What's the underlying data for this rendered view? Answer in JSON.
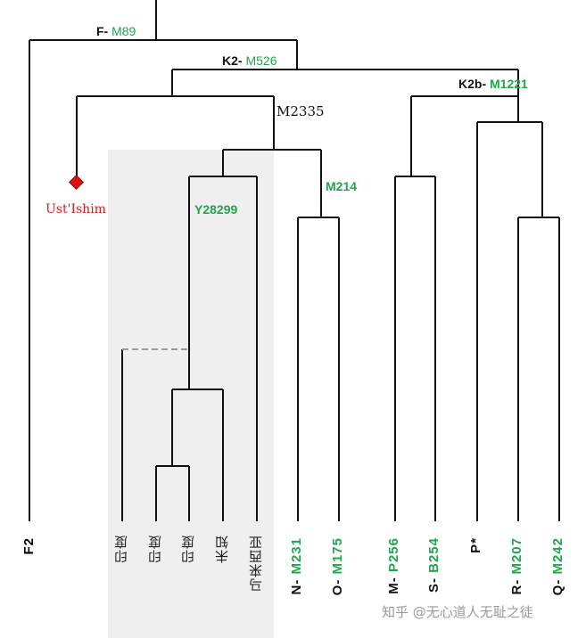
{
  "nodes": {
    "f": {
      "prefix": "F-",
      "marker": "M89"
    },
    "k2": {
      "prefix": "K2-",
      "marker": "M526"
    },
    "k2b": {
      "prefix": "K2b-",
      "marker": "M1221"
    },
    "m2335": {
      "marker": "M2335"
    },
    "m214": {
      "marker": "M214"
    },
    "y28299": {
      "marker": "Y28299"
    },
    "ust_ishim": {
      "label": "Ust'Ishim"
    }
  },
  "leaves": {
    "f2": "F2",
    "india1": "印度",
    "india2": "印度",
    "india3": "印度",
    "unknown": "未知",
    "malaysia": "马来西亚",
    "n": {
      "prefix": "N-",
      "marker": "M231"
    },
    "o": {
      "prefix": "O-",
      "marker": "M175"
    },
    "m": {
      "prefix": "M-",
      "marker": "P256"
    },
    "s": {
      "prefix": "S-",
      "marker": "B254"
    },
    "p": "P*",
    "r": {
      "prefix": "R-",
      "marker": "M207"
    },
    "q": {
      "prefix": "Q-",
      "marker": "M242"
    }
  },
  "watermark": "知乎 @无心道人无耻之徒",
  "colors": {
    "marker_green": "#1fa64a",
    "ancient_red": "#cc2222",
    "line": "#111111",
    "highlight_bg": "#efefef"
  }
}
